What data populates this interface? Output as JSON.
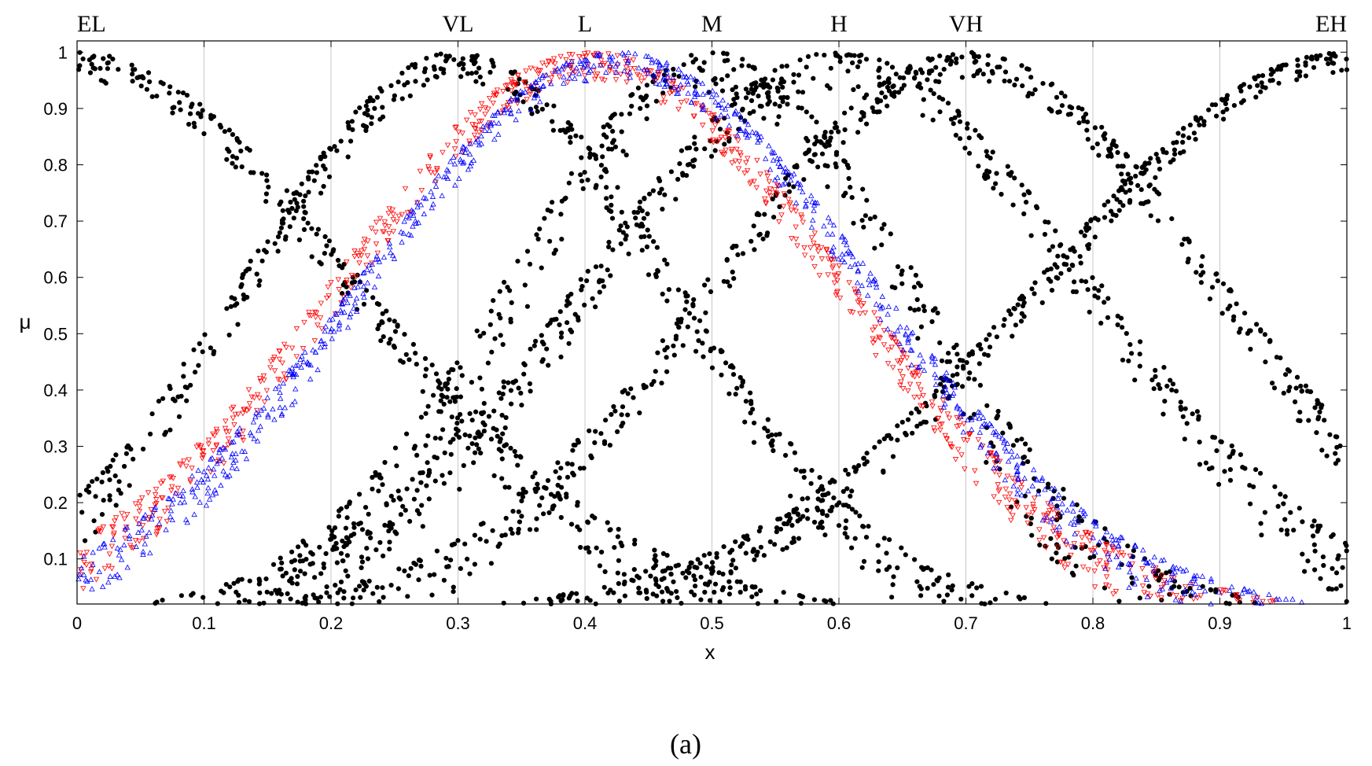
{
  "chart_data": {
    "type": "scatter",
    "title": "",
    "xlabel": "x",
    "ylabel": "μ",
    "xlim": [
      0,
      1
    ],
    "ylim": [
      0.02,
      1.02
    ],
    "x_ticks": [
      "0",
      "0.1",
      "0.2",
      "0.3",
      "0.4",
      "0.5",
      "0.6",
      "0.7",
      "0.8",
      "0.9",
      "1"
    ],
    "y_ticks": [
      "0.1",
      "0.2",
      "0.3",
      "0.4",
      "0.5",
      "0.6",
      "0.7",
      "0.8",
      "0.9",
      "1"
    ],
    "grid": "vertical",
    "linguistic_terms": [
      {
        "label": "EL",
        "center": 0.0
      },
      {
        "label": "VL",
        "center": 0.3
      },
      {
        "label": "L",
        "center": 0.4
      },
      {
        "label": "M",
        "center": 0.5
      },
      {
        "label": "H",
        "center": 0.6
      },
      {
        "label": "VH",
        "center": 0.7
      },
      {
        "label": "EH",
        "center": 1.0
      }
    ],
    "series": [
      {
        "marker": "filled-circle",
        "color": "#000000",
        "curves": [
          {
            "center": 0.0,
            "sigma": 0.22,
            "spread": 0.08
          },
          {
            "center": 0.3,
            "sigma": 0.17,
            "spread": 0.09
          },
          {
            "center": 0.5,
            "sigma": 0.16,
            "spread": 0.14
          },
          {
            "center": 0.6,
            "sigma": 0.2,
            "spread": 0.1
          },
          {
            "center": 0.7,
            "sigma": 0.2,
            "spread": 0.08
          },
          {
            "center": 1.0,
            "sigma": 0.24,
            "spread": 0.06
          }
        ],
        "points_per_curve": 650
      },
      {
        "marker": "triangle-down",
        "color": "#ff0000",
        "curves": [
          {
            "center": 0.405,
            "sigma": 0.2,
            "spread": 0.08
          }
        ],
        "points_per_curve": 900
      },
      {
        "marker": "triangle-up",
        "color": "#0000ff",
        "curves": [
          {
            "center": 0.425,
            "sigma": 0.2,
            "spread": 0.07
          }
        ],
        "points_per_curve": 900
      }
    ]
  },
  "caption": "(a)"
}
